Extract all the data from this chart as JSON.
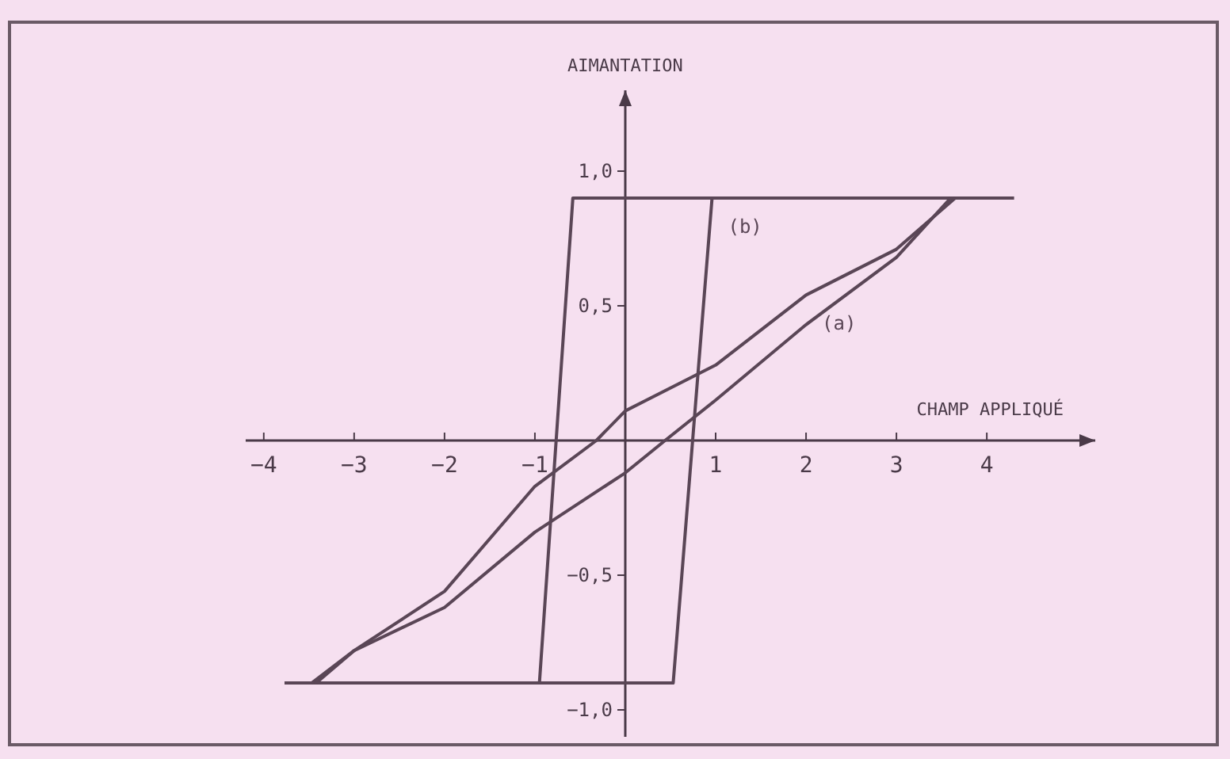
{
  "chart_data": {
    "type": "line",
    "xlabel": "CHAMP APPLIQUÉ",
    "ylabel": "AIMANTATION",
    "xlim": [
      -4.2,
      5.2
    ],
    "ylim": [
      -1.1,
      1.3
    ],
    "xticks": [
      {
        "value": -4,
        "label": "−4"
      },
      {
        "value": -3,
        "label": "−3"
      },
      {
        "value": -2,
        "label": "−2"
      },
      {
        "value": -1,
        "label": "−1"
      },
      1,
      2,
      3,
      4
    ],
    "yticks": [
      {
        "value": -1,
        "label": "−1,0"
      },
      {
        "value": -0.5,
        "label": "−0,5"
      },
      {
        "value": 0.5,
        "label": "0,5"
      },
      {
        "value": 1,
        "label": "1,0"
      }
    ],
    "series": [
      {
        "name": "(b)",
        "color": "#5a4656",
        "x": [
          -3.77,
          0.53,
          0.96,
          4.3
        ],
        "values": [
          -0.9,
          -0.9,
          0.9,
          0.9
        ]
      },
      {
        "color": "#5a4656",
        "x": [
          -3.77,
          -0.95,
          -0.58,
          4.3
        ],
        "values": [
          -0.9,
          -0.9,
          0.9,
          0.9
        ]
      },
      {
        "name": "(a)",
        "color": "#5a4656",
        "x": [
          -3.42,
          -3,
          -2,
          -1,
          -0.32,
          0,
          1,
          2,
          3,
          3.65
        ],
        "values": [
          -0.9,
          -0.78,
          -0.56,
          -0.17,
          0,
          0.11,
          0.28,
          0.54,
          0.71,
          0.9
        ]
      },
      {
        "color": "#5a4656",
        "x": [
          -3.47,
          -3,
          -2,
          -1,
          0,
          0.44,
          1,
          2,
          3,
          3.6
        ],
        "values": [
          -0.9,
          -0.78,
          -0.62,
          -0.34,
          -0.12,
          0,
          0.15,
          0.43,
          0.68,
          0.9
        ]
      }
    ],
    "legend": false,
    "grid": false,
    "marker": "none",
    "line_style": "solid"
  }
}
